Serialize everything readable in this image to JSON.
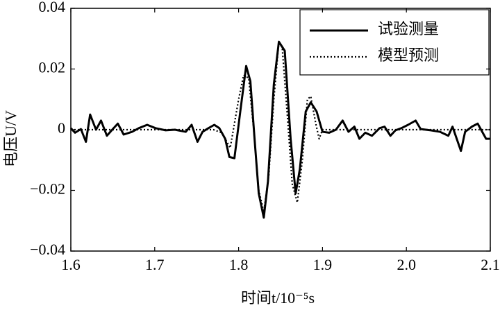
{
  "chart_data": {
    "type": "line",
    "x_label": "时间t/10⁻⁵s",
    "y_label": "电压U/V",
    "xlim": [
      1.6,
      2.1
    ],
    "ylim": [
      -0.04,
      0.04
    ],
    "xticks": [
      1.6,
      1.7,
      1.8,
      1.9,
      {
        "value": 2,
        "label": "2.0"
      },
      2.1
    ],
    "yticks": [
      {
        "value": -0.04,
        "label": "−0.04"
      },
      {
        "value": -0.02,
        "label": "−0.02"
      },
      0,
      0.02,
      0.04
    ],
    "grid": false,
    "legend": "upper right",
    "series": [
      {
        "name": "试验测量",
        "color": "#000000",
        "style": "solid",
        "x": [
          1.6,
          1.605,
          1.612,
          1.618,
          1.623,
          1.63,
          1.636,
          1.643,
          1.65,
          1.656,
          1.663,
          1.673,
          1.681,
          1.691,
          1.701,
          1.713,
          1.724,
          1.737,
          1.744,
          1.751,
          1.757,
          1.764,
          1.771,
          1.777,
          1.784,
          1.789,
          1.795,
          1.802,
          1.809,
          1.814,
          1.819,
          1.824,
          1.83,
          1.835,
          1.842,
          1.848,
          1.855,
          1.862,
          1.868,
          1.873,
          1.88,
          1.886,
          1.893,
          1.9,
          1.908,
          1.916,
          1.924,
          1.931,
          1.938,
          1.944,
          1.951,
          1.959,
          1.968,
          1.974,
          1.981,
          1.987,
          1.994,
          2.002,
          2.011,
          2.017,
          2.029,
          2.04,
          2.05,
          2.055,
          2.06,
          2.065,
          2.07,
          2.078,
          2.085,
          2.095,
          2.1
        ],
        "values": [
          0.0005,
          -0.001,
          0.0002,
          -0.004,
          0.005,
          0,
          0.003,
          -0.002,
          0.0002,
          0.002,
          -0.0016,
          -0.0007,
          0.0005,
          0.0016,
          0.0005,
          -0.0002,
          0,
          -0.0007,
          0.0016,
          -0.004,
          -0.0007,
          0.0005,
          0.0016,
          0.0005,
          -0.003,
          -0.009,
          -0.0094,
          0.006,
          0.021,
          0.016,
          -0.003,
          -0.021,
          -0.029,
          -0.017,
          0.015,
          0.029,
          0.026,
          -0.003,
          -0.021,
          -0.013,
          0.006,
          0.009,
          0.006,
          -0.0007,
          -0.001,
          0,
          0.003,
          -0.0007,
          0.001,
          -0.003,
          -0.001,
          -0.002,
          0.0005,
          0.001,
          -0.002,
          -0.0002,
          0.0005,
          0.0016,
          0.003,
          0.0002,
          -0.0002,
          -0.0007,
          -0.002,
          0.001,
          -0.003,
          -0.007,
          -0.0007,
          0.001,
          0.002,
          -0.003,
          -0.003
        ]
      },
      {
        "name": "模型预测",
        "color": "#000000",
        "style": "dotted",
        "x": [
          1.6,
          1.77,
          1.78,
          1.79,
          1.8,
          1.806,
          1.812,
          1.818,
          1.824,
          1.83,
          1.836,
          1.842,
          1.848,
          1.852,
          1.858,
          1.864,
          1.87,
          1.876,
          1.882,
          1.886,
          1.892,
          1.896,
          1.9,
          2.1
        ],
        "values": [
          0,
          0,
          -0.001,
          -0.006,
          0.01,
          0.018,
          0.017,
          0,
          -0.02,
          -0.027,
          -0.015,
          0.01,
          0.029,
          0.027,
          0.005,
          -0.018,
          -0.024,
          -0.01,
          0.01,
          0.011,
          0.002,
          -0.003,
          0,
          0
        ]
      }
    ]
  }
}
